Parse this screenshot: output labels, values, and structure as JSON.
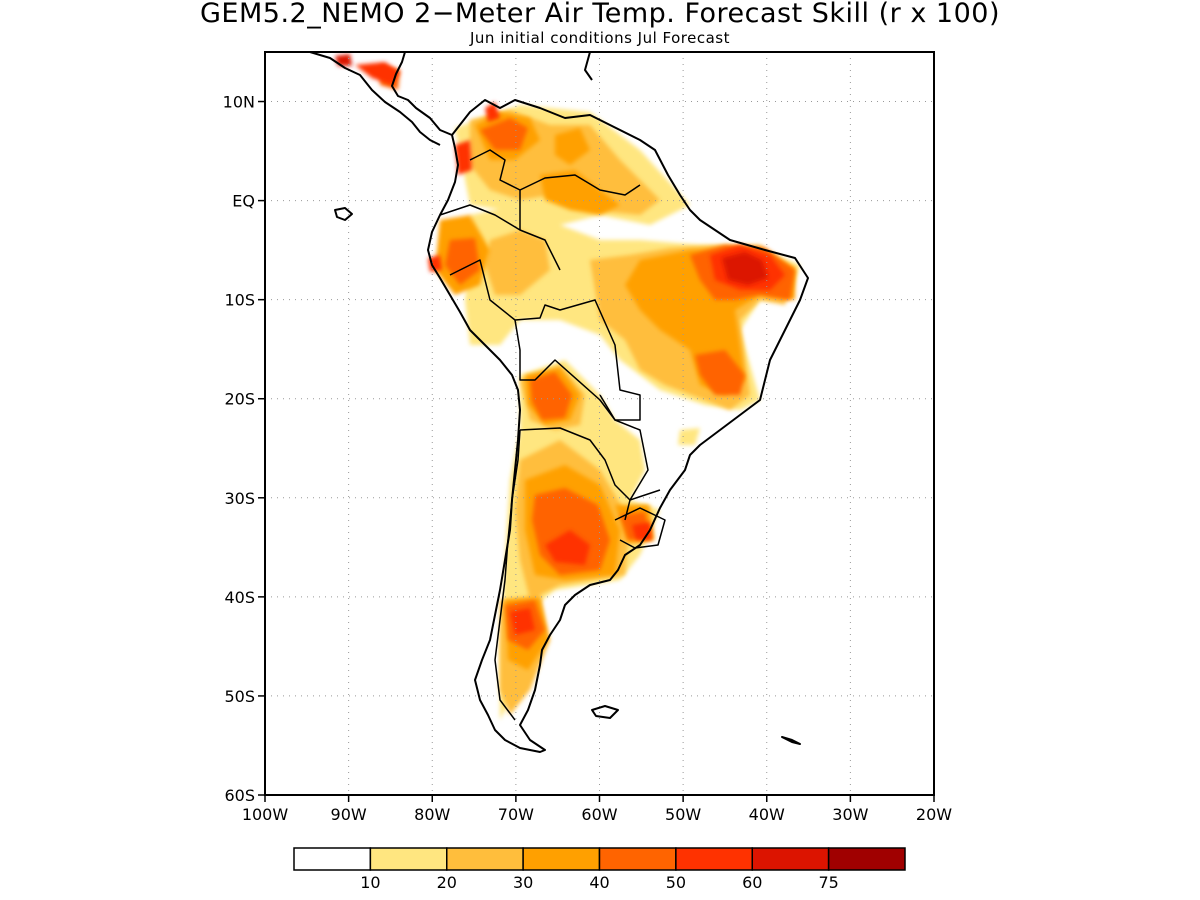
{
  "title": "GEM5.2_NEMO 2−Meter Air Temp. Forecast Skill (r x 100)",
  "subtitle": "Jun initial conditions  Jul Forecast",
  "map": {
    "lon_range": [
      -100,
      -20
    ],
    "lat_range": [
      -60,
      15
    ],
    "gridlines": "dotted",
    "lon_ticks": [
      {
        "value": -100,
        "label": "100W"
      },
      {
        "value": -90,
        "label": "90W"
      },
      {
        "value": -80,
        "label": "80W"
      },
      {
        "value": -70,
        "label": "70W"
      },
      {
        "value": -60,
        "label": "60W"
      },
      {
        "value": -50,
        "label": "50W"
      },
      {
        "value": -40,
        "label": "40W"
      },
      {
        "value": -30,
        "label": "30W"
      },
      {
        "value": -20,
        "label": "20W"
      }
    ],
    "lat_ticks": [
      {
        "value": 10,
        "label": "10N"
      },
      {
        "value": 0,
        "label": "EQ"
      },
      {
        "value": -10,
        "label": "10S"
      },
      {
        "value": -20,
        "label": "20S"
      },
      {
        "value": -30,
        "label": "30S"
      },
      {
        "value": -40,
        "label": "40S"
      },
      {
        "value": -50,
        "label": "50S"
      },
      {
        "value": -60,
        "label": "60S"
      }
    ]
  },
  "colorbar": {
    "colors": [
      "#ffffff",
      "#ffe680",
      "#ffbe3c",
      "#ffa000",
      "#ff6400",
      "#ff3200",
      "#dc1400",
      "#a00000"
    ],
    "labels": [
      "10",
      "20",
      "30",
      "40",
      "50",
      "60",
      "75"
    ]
  },
  "skill_regions": [
    {
      "name": "northeast-brazil-max",
      "lon": -42,
      "lat": -6,
      "level": 6
    },
    {
      "name": "caribbean-coast",
      "lon": -74,
      "lat": 10,
      "level": 5
    },
    {
      "name": "ecuador-coast",
      "lon": -80,
      "lat": -3,
      "level": 5
    },
    {
      "name": "bolivia-chaco",
      "lon": -64,
      "lat": -19,
      "level": 5
    },
    {
      "name": "central-argentina",
      "lon": -64,
      "lat": -34,
      "level": 5
    },
    {
      "name": "patagonia-north",
      "lon": -69,
      "lat": -42,
      "level": 5
    },
    {
      "name": "uruguay",
      "lon": -55,
      "lat": -33,
      "level": 5
    },
    {
      "name": "central-america",
      "lon": -85,
      "lat": 13,
      "level": 5
    },
    {
      "name": "central-brazil",
      "lon": -45,
      "lat": -17,
      "level": 4
    }
  ]
}
